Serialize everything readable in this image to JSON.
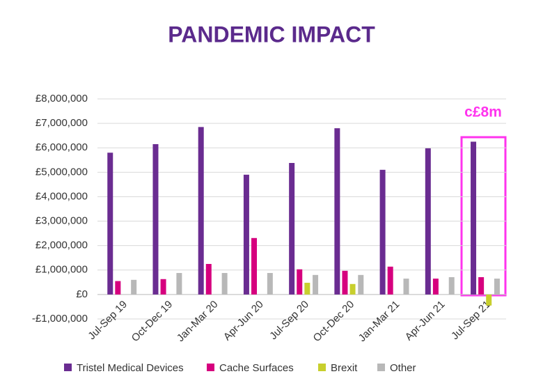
{
  "chart_data": {
    "type": "bar",
    "title": "PANDEMIC IMPACT",
    "annotation": "c£8m",
    "categories": [
      "Jul-Sep 19",
      "Oct-Dec 19",
      "Jan-Mar 20",
      "Apr-Jun 20",
      "Jul-Sep 20",
      "Oct-Dec 20",
      "Jan-Mar 21",
      "Apr-Jun 21",
      "Jul-Sep 21"
    ],
    "series": [
      {
        "name": "Tristel Medical Devices",
        "color": "#6a2c91",
        "values": [
          5800000,
          6150000,
          6850000,
          4900000,
          5380000,
          6800000,
          5100000,
          5980000,
          6250000
        ]
      },
      {
        "name": "Cache Surfaces",
        "color": "#d6007e",
        "values": [
          550000,
          630000,
          1250000,
          2310000,
          1030000,
          970000,
          1140000,
          650000,
          710000
        ]
      },
      {
        "name": "Brexit",
        "color": "#c8cf2d",
        "values": [
          null,
          null,
          null,
          null,
          480000,
          430000,
          null,
          null,
          -450000
        ]
      },
      {
        "name": "Other",
        "color": "#b8b8b8",
        "values": [
          600000,
          880000,
          880000,
          880000,
          800000,
          800000,
          650000,
          710000,
          650000
        ]
      }
    ],
    "ylim": [
      -1000000,
      8000000
    ],
    "yticks": [
      {
        "value": -1000000,
        "label": "-£1,000,000"
      },
      {
        "value": 0,
        "label": "£0"
      },
      {
        "value": 1000000,
        "label": "£1,000,000"
      },
      {
        "value": 2000000,
        "label": "£2,000,000"
      },
      {
        "value": 3000000,
        "label": "£3,000,000"
      },
      {
        "value": 4000000,
        "label": "£4,000,000"
      },
      {
        "value": 5000000,
        "label": "£5,000,000"
      },
      {
        "value": 6000000,
        "label": "£6,000,000"
      },
      {
        "value": 7000000,
        "label": "£7,000,000"
      },
      {
        "value": 8000000,
        "label": "£8,000,000"
      }
    ],
    "grid": true,
    "legend": "bottom"
  }
}
